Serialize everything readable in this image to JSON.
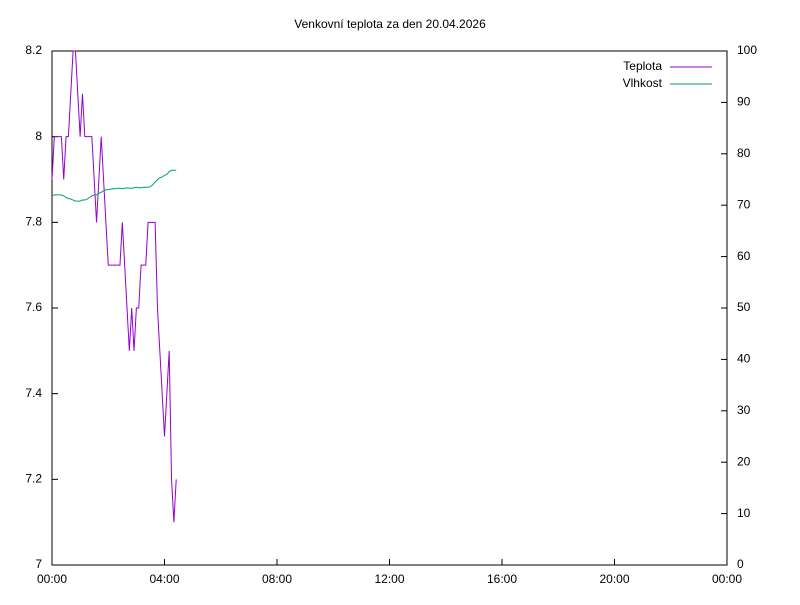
{
  "chart_data": {
    "type": "line",
    "title": "Venkovní teplota za den 20.04.2026",
    "x": [
      0,
      5,
      10,
      15,
      20,
      25,
      30,
      35,
      40,
      45,
      50,
      55,
      60,
      65,
      70,
      75,
      80,
      85,
      90,
      95,
      100,
      105,
      110,
      115,
      120,
      125,
      130,
      135,
      140,
      145,
      150,
      155,
      160,
      165,
      170,
      175,
      180,
      185,
      190,
      195,
      200,
      205,
      210,
      215,
      220,
      225,
      230,
      235,
      240,
      245,
      250,
      255,
      260,
      265
    ],
    "series": [
      {
        "name": "Teplota",
        "color": "#9400d3",
        "axis": "y",
        "values": [
          7.9,
          8.0,
          8.0,
          8.0,
          8.0,
          7.9,
          8.0,
          8.0,
          8.1,
          8.2,
          8.2,
          8.1,
          8.0,
          8.1,
          8.0,
          8.0,
          8.0,
          8.0,
          7.9,
          7.8,
          7.9,
          8.0,
          7.9,
          7.8,
          7.7,
          7.7,
          7.7,
          7.7,
          7.7,
          7.7,
          7.8,
          7.7,
          7.6,
          7.5,
          7.6,
          7.5,
          7.6,
          7.6,
          7.7,
          7.7,
          7.7,
          7.8,
          7.8,
          7.8,
          7.8,
          7.6,
          7.5,
          7.4,
          7.3,
          7.4,
          7.5,
          7.2,
          7.1,
          7.2
        ]
      },
      {
        "name": "Vlhkost",
        "color": "#009e73",
        "axis": "y2",
        "values": [
          71.8,
          72,
          72,
          72,
          72,
          71.8,
          71.5,
          71.3,
          71.2,
          71,
          70.8,
          70.8,
          70.8,
          71,
          71,
          71.2,
          71.5,
          71.8,
          72,
          72,
          72.3,
          72.5,
          72.8,
          73,
          73,
          73.1,
          73.2,
          73.2,
          73.3,
          73.3,
          73.2,
          73.3,
          73.4,
          73.3,
          73.3,
          73.4,
          73.5,
          73.4,
          73.4,
          73.5,
          73.5,
          73.5,
          73.6,
          74,
          74.5,
          75,
          75.3,
          75.5,
          75.8,
          76,
          76.5,
          76.8,
          76.8,
          76.8
        ]
      }
    ],
    "xlim": [
      0,
      1440
    ],
    "xticks": [
      {
        "value": 0,
        "label": "00:00"
      },
      {
        "value": 240,
        "label": "04:00"
      },
      {
        "value": 480,
        "label": "08:00"
      },
      {
        "value": 720,
        "label": "12:00"
      },
      {
        "value": 960,
        "label": "16:00"
      },
      {
        "value": 1200,
        "label": "20:00"
      },
      {
        "value": 1440,
        "label": "00:00"
      }
    ],
    "ylim": [
      7,
      8.2
    ],
    "yticks": [
      7,
      7.2,
      7.4,
      7.6,
      7.8,
      8,
      8.2
    ],
    "y2lim": [
      0,
      100
    ],
    "y2ticks": [
      0,
      10,
      20,
      30,
      40,
      50,
      60,
      70,
      80,
      90,
      100
    ],
    "legend": "top-right",
    "grid": false
  }
}
